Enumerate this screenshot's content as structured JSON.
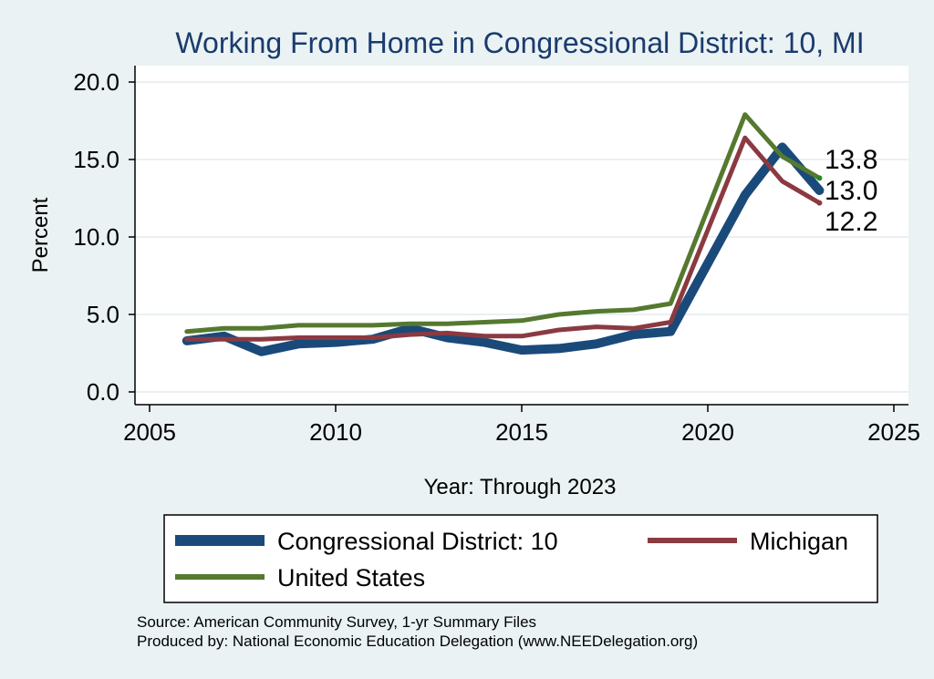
{
  "chart_data": {
    "type": "line",
    "title": "Working From Home in Congressional District: 10, MI",
    "xlabel": "Year: Through 2023",
    "ylabel": "Percent",
    "xlim": [
      2005,
      2025
    ],
    "ylim": [
      0,
      20
    ],
    "x_ticks": [
      "2005",
      "2010",
      "2015",
      "2020",
      "2025"
    ],
    "y_ticks": [
      "0.0",
      "5.0",
      "10.0",
      "15.0",
      "20.0"
    ],
    "grid": true,
    "legend_position": "bottom",
    "series": [
      {
        "name": "Congressional District: 10",
        "color": "#1a4a7a",
        "x": [
          2006,
          2007,
          2008,
          2009,
          2010,
          2011,
          2012,
          2013,
          2014,
          2015,
          2016,
          2017,
          2018,
          2019,
          2021,
          2022,
          2023
        ],
        "y": [
          3.3,
          3.6,
          2.6,
          3.1,
          3.2,
          3.4,
          4.1,
          3.5,
          3.2,
          2.7,
          2.8,
          3.1,
          3.7,
          3.9,
          12.7,
          15.8,
          13.0
        ]
      },
      {
        "name": "Michigan",
        "color": "#8b3a41",
        "x": [
          2006,
          2007,
          2008,
          2009,
          2010,
          2011,
          2012,
          2013,
          2014,
          2015,
          2016,
          2017,
          2018,
          2019,
          2021,
          2022,
          2023
        ],
        "y": [
          3.4,
          3.4,
          3.4,
          3.5,
          3.5,
          3.5,
          3.7,
          3.8,
          3.6,
          3.6,
          4.0,
          4.2,
          4.1,
          4.5,
          16.4,
          13.6,
          12.2
        ]
      },
      {
        "name": "United States",
        "color": "#55792f",
        "x": [
          2006,
          2007,
          2008,
          2009,
          2010,
          2011,
          2012,
          2013,
          2014,
          2015,
          2016,
          2017,
          2018,
          2019,
          2021,
          2022,
          2023
        ],
        "y": [
          3.9,
          4.1,
          4.1,
          4.3,
          4.3,
          4.3,
          4.4,
          4.4,
          4.5,
          4.6,
          5.0,
          5.2,
          5.3,
          5.7,
          17.9,
          15.2,
          13.8
        ]
      }
    ],
    "end_labels": [
      {
        "text": "13.8",
        "value": 13.8
      },
      {
        "text": "13.0",
        "value": 13.0
      },
      {
        "text": "12.2",
        "value": 12.2
      }
    ],
    "legend": [
      {
        "name": "Congressional District: 10",
        "color": "#1a4a7a"
      },
      {
        "name": "Michigan",
        "color": "#8b3a41"
      },
      {
        "name": "United States",
        "color": "#55792f"
      }
    ]
  },
  "notes": {
    "source": "Source: American Community Survey, 1-yr Summary Files",
    "produced_by": "Produced by: National Economic Education Delegation (www.NEEDelegation.org)"
  }
}
